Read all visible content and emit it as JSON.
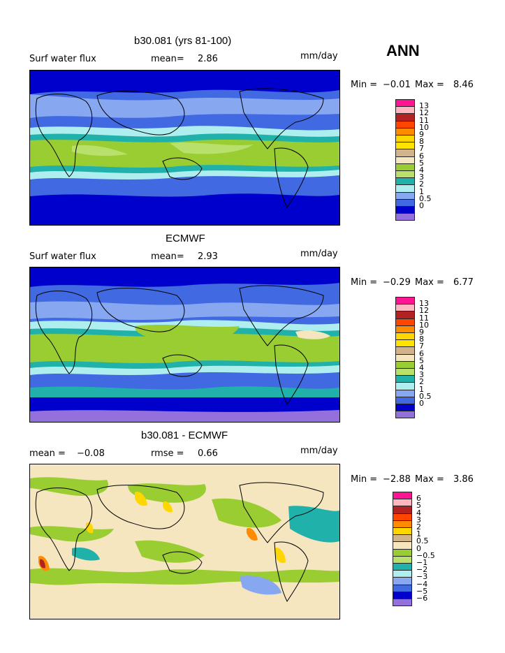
{
  "season": "ANN",
  "panels": [
    {
      "title": "b30.081 (yrs 81-100)",
      "left_label": "Surf water flux",
      "mean_label": "mean=",
      "mean_value": "2.86",
      "rmse_label": "",
      "rmse_value": "",
      "units": "mm/day",
      "min_label": "Min =",
      "min_value": "−0.01",
      "max_label": "Max =",
      "max_value": "8.46",
      "legend_labels": [
        "13",
        "12",
        "11",
        "10",
        "9",
        "8",
        "7",
        "6",
        "5",
        "4",
        "3",
        "2",
        "1",
        "0.5",
        "0"
      ],
      "legend_colors": [
        "#ff1493",
        "#ffb6c1",
        "#b22222",
        "#ff4500",
        "#ff8c00",
        "#ffd700",
        "#ffe400",
        "#d2b48c",
        "#f5e6c0",
        "#9acd32",
        "#b8e06a",
        "#20b2aa",
        "#afeeee",
        "#87a8f0",
        "#4169e1",
        "#0000cd",
        "#9370db"
      ]
    },
    {
      "title": "ECMWF",
      "left_label": "Surf water flux",
      "mean_label": "mean=",
      "mean_value": "2.93",
      "rmse_label": "",
      "rmse_value": "",
      "units": "mm/day",
      "min_label": "Min =",
      "min_value": "−0.29",
      "max_label": "Max =",
      "max_value": "6.77",
      "legend_labels": [
        "13",
        "12",
        "11",
        "10",
        "9",
        "8",
        "7",
        "6",
        "5",
        "4",
        "3",
        "2",
        "1",
        "0.5",
        "0"
      ],
      "legend_colors": [
        "#ff1493",
        "#ffb6c1",
        "#b22222",
        "#ff4500",
        "#ff8c00",
        "#ffd700",
        "#ffe400",
        "#d2b48c",
        "#f5e6c0",
        "#9acd32",
        "#b8e06a",
        "#20b2aa",
        "#afeeee",
        "#87a8f0",
        "#4169e1",
        "#0000cd",
        "#9370db"
      ]
    },
    {
      "title": "b30.081 - ECMWF",
      "left_label": "mean =",
      "mean_label": "",
      "mean_value": "−0.08",
      "rmse_label": "rmse =",
      "rmse_value": "0.66",
      "units": "mm/day",
      "min_label": "Min =",
      "min_value": "−2.88",
      "max_label": "Max =",
      "max_value": "3.86",
      "legend_labels": [
        "6",
        "5",
        "4",
        "3",
        "2",
        "1",
        "0.5",
        "0",
        "−0.5",
        "−1",
        "−2",
        "−3",
        "−4",
        "−5",
        "−6"
      ],
      "legend_colors": [
        "#ff1493",
        "#ffb6c1",
        "#b22222",
        "#ff4500",
        "#ff8c00",
        "#ffd700",
        "#d2b48c",
        "#f5e6c0",
        "#9acd32",
        "#b8e06a",
        "#20b2aa",
        "#afeeee",
        "#87a8f0",
        "#4169e1",
        "#0000cd",
        "#9370db"
      ]
    }
  ],
  "chart_data": [
    {
      "type": "heatmap",
      "title": "b30.081 (yrs 81-100)",
      "variable": "Surf water flux",
      "units": "mm/day",
      "mean": 2.86,
      "min": -0.01,
      "max": 8.46,
      "contour_levels": [
        0,
        0.5,
        1,
        2,
        3,
        4,
        5,
        6,
        7,
        8,
        9,
        10,
        11,
        12,
        13
      ]
    },
    {
      "type": "heatmap",
      "title": "ECMWF",
      "variable": "Surf water flux",
      "units": "mm/day",
      "mean": 2.93,
      "min": -0.29,
      "max": 6.77,
      "contour_levels": [
        0,
        0.5,
        1,
        2,
        3,
        4,
        5,
        6,
        7,
        8,
        9,
        10,
        11,
        12,
        13
      ]
    },
    {
      "type": "heatmap",
      "title": "b30.081 - ECMWF",
      "units": "mm/day",
      "mean": -0.08,
      "rmse": 0.66,
      "min": -2.88,
      "max": 3.86,
      "contour_levels": [
        -6,
        -5,
        -4,
        -3,
        -2,
        -1,
        -0.5,
        0,
        0.5,
        1,
        2,
        3,
        4,
        5,
        6
      ]
    }
  ]
}
